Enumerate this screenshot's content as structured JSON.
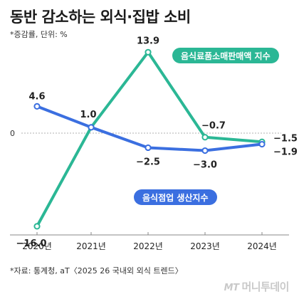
{
  "title": "동반 감소하는 외식·집밥 소비",
  "subtitle": "*증감률, 단위: %",
  "source": "*자료: 통계청, aT〈2025 26 국내외 외식 트렌드〉",
  "logo": {
    "mark": "MT",
    "text": "머니투데이"
  },
  "colors": {
    "green": "#2bb795",
    "blue": "#3b6fe0",
    "zero_line": "#999999"
  },
  "chart_data": {
    "type": "line",
    "x": [
      "2020년",
      "2021년",
      "2022년",
      "2023년",
      "2024년"
    ],
    "zero_label": "0",
    "series": [
      {
        "name": "음식료품소매판매액 지수",
        "color": "#2bb795",
        "values": [
          -16.0,
          1.0,
          13.9,
          -0.7,
          -1.5
        ],
        "labels": [
          "",
          "",
          "13.9",
          "−0.7",
          "−1.5"
        ]
      },
      {
        "name": "음식점업 생산지수",
        "color": "#3b6fe0",
        "values": [
          4.6,
          1.0,
          -2.5,
          -3.0,
          -1.9
        ],
        "labels": [
          "4.6",
          "1.0",
          "−2.5",
          "−3.0",
          "−1.9"
        ]
      }
    ],
    "extra_labels": [
      {
        "series": 0,
        "index": 0,
        "text": "−16.0"
      }
    ],
    "ylim": [
      -18,
      16
    ],
    "grid": false,
    "legend": "inline"
  }
}
